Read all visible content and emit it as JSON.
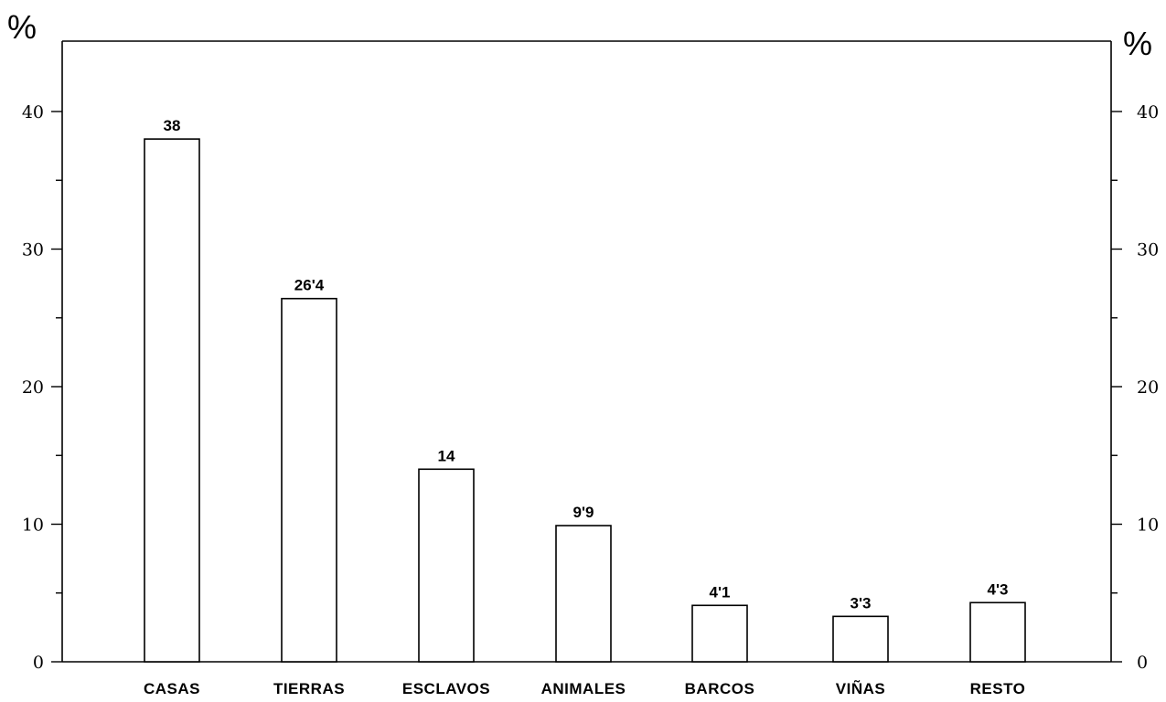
{
  "chart_data": {
    "type": "bar",
    "categories": [
      "CASAS",
      "TIERRAS",
      "ESCLAVOS",
      "ANIMALES",
      "BARCOS",
      "VIÑAS",
      "RESTO"
    ],
    "values": [
      38,
      26.4,
      14,
      9.9,
      4.1,
      3.3,
      4.3
    ],
    "value_labels": [
      "38",
      "26'4",
      "14",
      "9'9",
      "4'1",
      "3'3",
      "4'3"
    ],
    "y_unit_left": "%",
    "y_unit_right": "%",
    "ylim": [
      0,
      45
    ],
    "major_ticks": [
      0,
      10,
      20,
      30,
      40
    ],
    "minor_tick_step": 5,
    "grid": false,
    "legend": "none",
    "colors": {
      "bar_fill": "#ffffff",
      "bar_stroke": "#000000"
    }
  }
}
